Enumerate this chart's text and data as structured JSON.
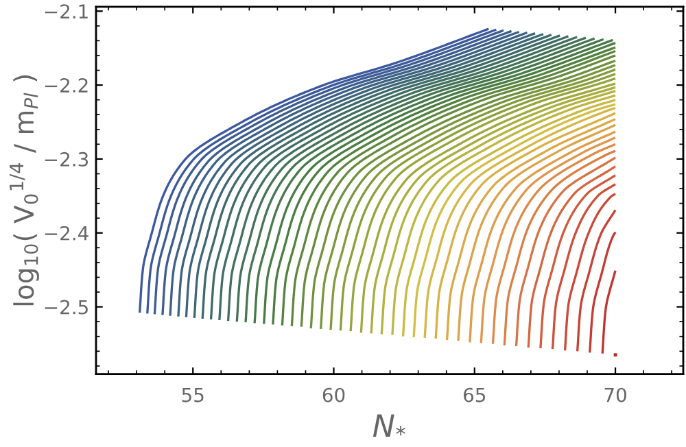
{
  "chart_data": {
    "type": "line",
    "xlabel": "N$_{*}$",
    "ylabel": "log$_{10}$( V$_{0}$$^{1/4}$ / m$_{Pl}$ )",
    "xlim": [
      51.56,
      72.41
    ],
    "ylim": [
      -2.591,
      -2.094
    ],
    "xticks": [
      {
        "value": 52,
        "label": null
      },
      {
        "value": 53,
        "label": null
      },
      {
        "value": 54,
        "label": null
      },
      55,
      {
        "value": 56,
        "label": null
      },
      {
        "value": 57,
        "label": null
      },
      {
        "value": 58,
        "label": null
      },
      {
        "value": 59,
        "label": null
      },
      60,
      {
        "value": 61,
        "label": null
      },
      {
        "value": 62,
        "label": null
      },
      {
        "value": 63,
        "label": null
      },
      {
        "value": 64,
        "label": null
      },
      65,
      {
        "value": 66,
        "label": null
      },
      {
        "value": 67,
        "label": null
      },
      {
        "value": 68,
        "label": null
      },
      {
        "value": 69,
        "label": null
      },
      70,
      {
        "value": 71,
        "label": null
      },
      {
        "value": 72,
        "label": null
      }
    ],
    "yticks": [
      {
        "value": -2.58,
        "label": null
      },
      {
        "value": -2.56,
        "label": null
      },
      {
        "value": -2.54,
        "label": null
      },
      {
        "value": -2.52,
        "label": null
      },
      {
        "value": -2.5,
        "label": "−2.5"
      },
      {
        "value": -2.48,
        "label": null
      },
      {
        "value": -2.46,
        "label": null
      },
      {
        "value": -2.44,
        "label": null
      },
      {
        "value": -2.42,
        "label": null
      },
      {
        "value": -2.4,
        "label": "−2.4"
      },
      {
        "value": -2.38,
        "label": null
      },
      {
        "value": -2.36,
        "label": null
      },
      {
        "value": -2.34,
        "label": null
      },
      {
        "value": -2.32,
        "label": null
      },
      {
        "value": -2.3,
        "label": "−2.3"
      },
      {
        "value": -2.28,
        "label": null
      },
      {
        "value": -2.26,
        "label": null
      },
      {
        "value": -2.24,
        "label": null
      },
      {
        "value": -2.22,
        "label": null
      },
      {
        "value": -2.2,
        "label": "−2.2"
      },
      {
        "value": -2.18,
        "label": null
      },
      {
        "value": -2.16,
        "label": null
      },
      {
        "value": -2.14,
        "label": null
      },
      {
        "value": -2.12,
        "label": null
      },
      {
        "value": -2.1,
        "label": "−2.1"
      }
    ],
    "grid": false,
    "legend": false,
    "series": [
      {
        "color": "#3c58a0",
        "x": [
          53.11,
          53.22,
          53.54,
          53.94,
          54.74,
          56.74,
          59.64,
          62.2,
          65.5
        ],
        "values": [
          -2.508,
          -2.45,
          -2.4,
          -2.35,
          -2.3,
          -2.25,
          -2.2,
          -2.17,
          -2.124
        ]
      },
      {
        "color": "#3c5a9a",
        "x": [
          53.38,
          53.49,
          53.81,
          54.21,
          55.01,
          57.01,
          59.91,
          62.47,
          65.77
        ],
        "values": [
          -2.509,
          -2.451,
          -2.401,
          -2.351,
          -2.301,
          -2.251,
          -2.201,
          -2.171,
          -2.125
        ]
      },
      {
        "color": "#3d5c94",
        "x": [
          53.64,
          53.75,
          54.07,
          54.47,
          55.27,
          57.27,
          60.17,
          62.73,
          66.03
        ],
        "values": [
          -2.51,
          -2.452,
          -2.402,
          -2.352,
          -2.302,
          -2.252,
          -2.202,
          -2.172,
          -2.126
        ]
      },
      {
        "color": "#3d5e8d",
        "x": [
          53.92,
          54.03,
          54.35,
          54.75,
          55.55,
          57.55,
          60.45,
          63.01,
          66.31
        ],
        "values": [
          -2.511,
          -2.453,
          -2.403,
          -2.353,
          -2.303,
          -2.253,
          -2.203,
          -2.173,
          -2.127
        ]
      },
      {
        "color": "#3d6187",
        "x": [
          54.19,
          54.3,
          54.62,
          55.02,
          55.82,
          57.82,
          60.72,
          63.28,
          66.58
        ],
        "values": [
          -2.512,
          -2.454,
          -2.404,
          -2.354,
          -2.304,
          -2.254,
          -2.204,
          -2.174,
          -2.128
        ]
      },
      {
        "color": "#3d6381",
        "x": [
          54.48,
          54.59,
          54.91,
          55.31,
          56.11,
          58.11,
          61.01,
          63.57,
          66.87
        ],
        "values": [
          -2.513,
          -2.455,
          -2.405,
          -2.355,
          -2.305,
          -2.255,
          -2.205,
          -2.175,
          -2.129
        ]
      },
      {
        "color": "#3e657b",
        "x": [
          54.76,
          54.87,
          55.19,
          55.59,
          56.39,
          58.39,
          61.29,
          63.85,
          67.15
        ],
        "values": [
          -2.514,
          -2.456,
          -2.406,
          -2.356,
          -2.306,
          -2.256,
          -2.206,
          -2.176,
          -2.13
        ]
      },
      {
        "color": "#3e6774",
        "x": [
          55.05,
          55.16,
          55.48,
          55.88,
          56.68,
          58.68,
          61.58,
          64.14,
          67.44
        ],
        "values": [
          -2.515,
          -2.457,
          -2.407,
          -2.357,
          -2.307,
          -2.257,
          -2.207,
          -2.177,
          -2.131
        ]
      },
      {
        "color": "#3e696e",
        "x": [
          55.34,
          55.45,
          55.77,
          56.17,
          56.97,
          58.97,
          61.87,
          64.43,
          67.73
        ],
        "values": [
          -2.516,
          -2.458,
          -2.408,
          -2.358,
          -2.308,
          -2.258,
          -2.208,
          -2.178,
          -2.132
        ]
      },
      {
        "color": "#406c68",
        "x": [
          55.64,
          55.75,
          56.07,
          56.47,
          57.27,
          59.27,
          62.17,
          64.73,
          68.03
        ],
        "values": [
          -2.517,
          -2.459,
          -2.409,
          -2.359,
          -2.309,
          -2.259,
          -2.209,
          -2.179,
          -2.133
        ]
      },
      {
        "color": "#416e63",
        "x": [
          55.94,
          56.05,
          56.37,
          56.77,
          57.57,
          59.57,
          62.47,
          65.03,
          68.33
        ],
        "values": [
          -2.518,
          -2.46,
          -2.41,
          -2.36,
          -2.31,
          -2.26,
          -2.21,
          -2.18,
          -2.134
        ]
      },
      {
        "color": "#43715d",
        "x": [
          56.25,
          56.36,
          56.68,
          57.08,
          57.88,
          59.88,
          62.78,
          65.34,
          68.64
        ],
        "values": [
          -2.519,
          -2.461,
          -2.411,
          -2.361,
          -2.311,
          -2.261,
          -2.211,
          -2.181,
          -2.135
        ]
      },
      {
        "color": "#457358",
        "x": [
          56.56,
          56.67,
          56.99,
          57.39,
          58.19,
          60.19,
          63.09,
          65.65,
          68.95
        ],
        "values": [
          -2.52,
          -2.462,
          -2.412,
          -2.362,
          -2.312,
          -2.262,
          -2.212,
          -2.182,
          -2.136
        ]
      },
      {
        "color": "#467652",
        "x": [
          56.87,
          56.98,
          57.3,
          57.7,
          58.5,
          60.5,
          63.4,
          65.96,
          69.26
        ],
        "values": [
          -2.521,
          -2.463,
          -2.413,
          -2.363,
          -2.313,
          -2.263,
          -2.213,
          -2.183,
          -2.137
        ]
      },
      {
        "color": "#48784c",
        "x": [
          57.19,
          57.3,
          57.62,
          58.02,
          58.82,
          60.82,
          63.72,
          66.28,
          69.58
        ],
        "values": [
          -2.522,
          -2.464,
          -2.414,
          -2.364,
          -2.314,
          -2.264,
          -2.214,
          -2.184,
          -2.138
        ]
      },
      {
        "color": "#497b47",
        "x": [
          57.52,
          57.63,
          57.95,
          58.35,
          59.15,
          61.15,
          64.05,
          66.61,
          69.91
        ],
        "values": [
          -2.523,
          -2.465,
          -2.415,
          -2.365,
          -2.315,
          -2.265,
          -2.215,
          -2.185,
          -2.139
        ]
      },
      {
        "color": "#4b7d41",
        "x": [
          57.84,
          57.95,
          58.27,
          58.67,
          59.47,
          61.47,
          64.37,
          66.93,
          70
        ],
        "values": [
          -2.524,
          -2.466,
          -2.416,
          -2.366,
          -2.316,
          -2.266,
          -2.216,
          -2.186,
          -2.143
        ]
      },
      {
        "color": "#548240",
        "x": [
          58.17,
          58.28,
          58.6,
          59.0,
          59.8,
          61.8,
          64.7,
          67.26,
          70
        ],
        "values": [
          -2.525,
          -2.467,
          -2.417,
          -2.367,
          -2.317,
          -2.267,
          -2.217,
          -2.187,
          -2.149
        ]
      },
      {
        "color": "#5e8740",
        "x": [
          58.51,
          58.62,
          58.94,
          59.34,
          60.14,
          62.14,
          65.04,
          67.6,
          70
        ],
        "values": [
          -2.526,
          -2.468,
          -2.418,
          -2.368,
          -2.318,
          -2.268,
          -2.218,
          -2.188,
          -2.154
        ]
      },
      {
        "color": "#678c3f",
        "x": [
          58.85,
          58.96,
          59.28,
          59.68,
          60.48,
          62.48,
          65.38,
          67.94,
          70
        ],
        "values": [
          -2.527,
          -2.469,
          -2.419,
          -2.369,
          -2.319,
          -2.269,
          -2.219,
          -2.189,
          -2.16
        ]
      },
      {
        "color": "#70913e",
        "x": [
          59.19,
          59.3,
          59.62,
          60.02,
          60.82,
          62.82,
          65.72,
          68.28,
          70
        ],
        "values": [
          -2.529,
          -2.471,
          -2.421,
          -2.371,
          -2.321,
          -2.271,
          -2.221,
          -2.191,
          -2.167
        ]
      },
      {
        "color": "#7a963e",
        "x": [
          59.54,
          59.65,
          59.97,
          60.37,
          61.17,
          63.17,
          66.07,
          68.63,
          70
        ],
        "values": [
          -2.53,
          -2.472,
          -2.422,
          -2.372,
          -2.322,
          -2.272,
          -2.222,
          -2.192,
          -2.173
        ]
      },
      {
        "color": "#839b3d",
        "x": [
          59.89,
          60.0,
          60.32,
          60.72,
          61.52,
          63.52,
          66.42,
          68.98,
          70
        ],
        "values": [
          -2.531,
          -2.473,
          -2.423,
          -2.373,
          -2.323,
          -2.273,
          -2.223,
          -2.193,
          -2.179
        ]
      },
      {
        "color": "#8ba03d",
        "x": [
          60.24,
          60.35,
          60.67,
          61.07,
          61.87,
          63.87,
          66.77,
          69.33,
          70
        ],
        "values": [
          -2.532,
          -2.474,
          -2.424,
          -2.374,
          -2.324,
          -2.274,
          -2.224,
          -2.194,
          -2.185
        ]
      },
      {
        "color": "#96a53c",
        "x": [
          60.6,
          60.71,
          61.03,
          61.43,
          62.23,
          64.23,
          67.13,
          69.69,
          70
        ],
        "values": [
          -2.533,
          -2.475,
          -2.425,
          -2.375,
          -2.325,
          -2.275,
          -2.225,
          -2.195,
          -2.191
        ]
      },
      {
        "color": "#a0a93e",
        "x": [
          60.97,
          61.08,
          61.4,
          61.8,
          62.6,
          64.6,
          67.5,
          70
        ],
        "values": [
          -2.535,
          -2.477,
          -2.427,
          -2.377,
          -2.327,
          -2.277,
          -2.227,
          -2.198
        ]
      },
      {
        "color": "#aaad3f",
        "x": [
          61.33,
          61.44,
          61.76,
          62.16,
          62.96,
          64.96,
          67.86,
          70
        ],
        "values": [
          -2.536,
          -2.478,
          -2.428,
          -2.378,
          -2.328,
          -2.278,
          -2.228,
          -2.203
        ]
      },
      {
        "color": "#b4b241",
        "x": [
          61.7,
          61.81,
          62.13,
          62.53,
          63.33,
          65.33,
          68.23,
          70
        ],
        "values": [
          -2.537,
          -2.479,
          -2.429,
          -2.379,
          -2.329,
          -2.279,
          -2.229,
          -2.208
        ]
      },
      {
        "color": "#beb643",
        "x": [
          62.08,
          62.19,
          62.51,
          62.91,
          63.71,
          65.71,
          68.61,
          70
        ],
        "values": [
          -2.538,
          -2.48,
          -2.43,
          -2.38,
          -2.33,
          -2.28,
          -2.23,
          -2.214
        ]
      },
      {
        "color": "#c8ba44",
        "x": [
          62.46,
          62.57,
          62.89,
          63.29,
          64.09,
          66.09,
          68.99,
          70
        ],
        "values": [
          -2.54,
          -2.482,
          -2.432,
          -2.382,
          -2.332,
          -2.282,
          -2.232,
          -2.22
        ]
      },
      {
        "color": "#d2be46",
        "x": [
          62.84,
          62.95,
          63.27,
          63.67,
          64.47,
          66.47,
          69.37,
          70
        ],
        "values": [
          -2.541,
          -2.483,
          -2.433,
          -2.383,
          -2.333,
          -2.283,
          -2.233,
          -2.226
        ]
      },
      {
        "color": "#d5b747",
        "x": [
          63.23,
          63.34,
          63.66,
          64.06,
          64.86,
          66.86,
          69.76,
          70
        ],
        "values": [
          -2.542,
          -2.484,
          -2.434,
          -2.384,
          -2.334,
          -2.284,
          -2.234,
          -2.231
        ]
      },
      {
        "color": "#d7b148",
        "x": [
          63.62,
          63.73,
          64.05,
          64.45,
          65.25,
          67.25,
          70
        ],
        "values": [
          -2.543,
          -2.485,
          -2.435,
          -2.385,
          -2.335,
          -2.285,
          -2.238
        ]
      },
      {
        "color": "#daaa49",
        "x": [
          64.02,
          64.13,
          64.45,
          64.85,
          65.65,
          67.65,
          70
        ],
        "values": [
          -2.545,
          -2.487,
          -2.437,
          -2.387,
          -2.337,
          -2.287,
          -2.246
        ]
      },
      {
        "color": "#dca349",
        "x": [
          64.42,
          64.53,
          64.85,
          65.25,
          66.05,
          68.05,
          70
        ],
        "values": [
          -2.546,
          -2.488,
          -2.438,
          -2.388,
          -2.338,
          -2.288,
          -2.254
        ]
      },
      {
        "color": "#df9d4a",
        "x": [
          64.83,
          64.94,
          65.26,
          65.66,
          66.46,
          68.46,
          70
        ],
        "values": [
          -2.548,
          -2.49,
          -2.44,
          -2.39,
          -2.34,
          -2.29,
          -2.263
        ]
      },
      {
        "color": "#e1964b",
        "x": [
          65.23,
          65.34,
          65.66,
          66.06,
          66.86,
          68.86,
          70
        ],
        "values": [
          -2.549,
          -2.491,
          -2.441,
          -2.391,
          -2.341,
          -2.291,
          -2.271
        ]
      },
      {
        "color": "#de8a49",
        "x": [
          65.65,
          65.76,
          66.08,
          66.48,
          67.28,
          69.28,
          70
        ],
        "values": [
          -2.55,
          -2.492,
          -2.442,
          -2.392,
          -2.342,
          -2.292,
          -2.28
        ]
      },
      {
        "color": "#da7f46",
        "x": [
          66.06,
          66.17,
          66.49,
          66.89,
          67.69,
          69.69,
          70
        ],
        "values": [
          -2.552,
          -2.494,
          -2.444,
          -2.394,
          -2.344,
          -2.294,
          -2.289
        ]
      },
      {
        "color": "#d77344",
        "x": [
          66.48,
          66.59,
          66.91,
          67.31,
          68.11,
          70
        ],
        "values": [
          -2.553,
          -2.495,
          -2.445,
          -2.395,
          -2.345,
          -2.298
        ]
      },
      {
        "color": "#d46741",
        "x": [
          66.91,
          67.02,
          67.34,
          67.74,
          68.54,
          70
        ],
        "values": [
          -2.555,
          -2.497,
          -2.447,
          -2.397,
          -2.347,
          -2.31
        ]
      },
      {
        "color": "#d05c3f",
        "x": [
          67.34,
          67.45,
          67.77,
          68.17,
          68.97,
          70
        ],
        "values": [
          -2.556,
          -2.498,
          -2.448,
          -2.398,
          -2.348,
          -2.322
        ]
      },
      {
        "color": "#cd503c",
        "x": [
          67.77,
          67.88,
          68.2,
          68.6,
          69.4,
          70
        ],
        "values": [
          -2.557,
          -2.499,
          -2.449,
          -2.399,
          -2.349,
          -2.334
        ]
      },
      {
        "color": "#ca4939",
        "x": [
          68.21,
          68.32,
          68.64,
          69.04,
          69.84,
          70
        ],
        "values": [
          -2.559,
          -2.501,
          -2.451,
          -2.401,
          -2.351,
          -2.347
        ]
      },
      {
        "color": "#c74236",
        "x": [
          68.65,
          68.76,
          69.08,
          69.48,
          70
        ],
        "values": [
          -2.56,
          -2.502,
          -2.452,
          -2.402,
          -2.369
        ]
      },
      {
        "color": "#c43b33",
        "x": [
          69.09,
          69.2,
          69.52,
          69.92,
          70
        ],
        "values": [
          -2.562,
          -2.504,
          -2.454,
          -2.404,
          -2.399
        ]
      },
      {
        "color": "#c13430",
        "x": [
          69.54,
          69.65,
          69.97,
          70
        ],
        "values": [
          -2.563,
          -2.505,
          -2.455,
          -2.451
        ]
      },
      {
        "color": "#be2d2d",
        "type": "scatter",
        "x": [
          70
        ],
        "values": [
          -2.565
        ]
      }
    ]
  }
}
